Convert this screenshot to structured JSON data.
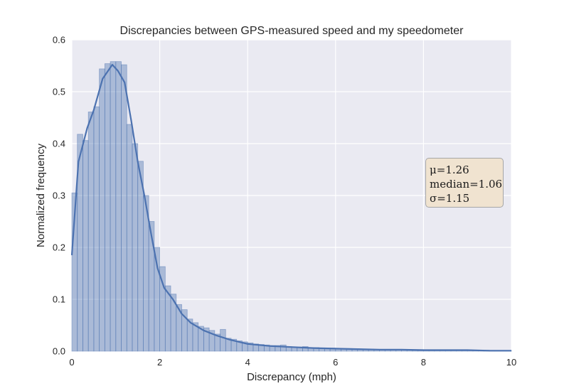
{
  "chart_data": {
    "type": "bar",
    "title": "Discrepancies between GPS-measured speed and my speedometer",
    "xlabel": "Discrepancy (mph)",
    "ylabel": "Normalized frequency",
    "xlim": [
      0,
      10
    ],
    "ylim": [
      0,
      0.6
    ],
    "xticks": [
      "0",
      "2",
      "4",
      "6",
      "8",
      "10"
    ],
    "yticks": [
      "0.0",
      "0.1",
      "0.2",
      "0.3",
      "0.4",
      "0.5",
      "0.6"
    ],
    "grid": true,
    "bin_width": 0.125,
    "histogram": {
      "name": "histogram",
      "bin_starts": [
        0.0,
        0.125,
        0.25,
        0.375,
        0.5,
        0.625,
        0.75,
        0.875,
        1.0,
        1.125,
        1.25,
        1.375,
        1.5,
        1.625,
        1.75,
        1.875,
        2.0,
        2.125,
        2.25,
        2.375,
        2.5,
        2.625,
        2.75,
        2.875,
        3.0,
        3.125,
        3.25,
        3.375,
        3.5,
        3.625,
        3.75,
        3.875,
        4.0,
        4.125,
        4.25,
        4.375,
        4.5,
        4.625,
        4.75,
        4.875,
        5.0,
        5.125,
        5.25,
        5.375,
        5.5,
        5.625,
        5.75,
        5.875,
        6.0,
        6.125,
        6.25,
        6.375,
        6.5,
        6.625,
        6.75,
        6.875,
        7.0,
        7.125,
        7.25,
        7.375,
        7.5,
        7.625,
        7.75,
        7.875,
        8.0,
        8.125,
        8.25,
        8.375,
        8.5,
        8.625,
        8.75,
        8.875,
        9.0,
        9.125,
        9.25,
        9.375,
        9.5,
        9.625,
        9.75,
        9.875
      ],
      "values": [
        0.305,
        0.418,
        0.406,
        0.461,
        0.471,
        0.544,
        0.554,
        0.558,
        0.558,
        0.552,
        0.437,
        0.4,
        0.366,
        0.3,
        0.25,
        0.2,
        0.163,
        0.126,
        0.11,
        0.09,
        0.08,
        0.062,
        0.055,
        0.048,
        0.045,
        0.04,
        0.033,
        0.042,
        0.025,
        0.023,
        0.02,
        0.018,
        0.016,
        0.014,
        0.013,
        0.012,
        0.011,
        0.011,
        0.012,
        0.009,
        0.008,
        0.008,
        0.009,
        0.007,
        0.007,
        0.006,
        0.006,
        0.006,
        0.005,
        0.005,
        0.005,
        0.004,
        0.004,
        0.004,
        0.004,
        0.003,
        0.003,
        0.003,
        0.003,
        0.003,
        0.003,
        0.003,
        0.003,
        0.003,
        0.002,
        0.002,
        0.002,
        0.002,
        0.002,
        0.002,
        0.002,
        0.002,
        0.002,
        0.002,
        0.002,
        0.002,
        0.001,
        0.001,
        0.001,
        0.001
      ]
    },
    "kde": {
      "name": "density",
      "x": [
        0.0,
        0.15,
        0.35,
        0.5,
        0.7,
        0.92,
        1.05,
        1.2,
        1.35,
        1.5,
        1.65,
        1.8,
        1.95,
        2.1,
        2.3,
        2.5,
        2.7,
        3.0,
        3.3,
        3.6,
        4.0,
        4.5,
        5.0,
        5.5,
        6.0,
        6.5,
        7.0,
        7.5,
        8.0,
        8.5,
        9.0,
        9.5,
        10.0
      ],
      "y": [
        0.185,
        0.365,
        0.43,
        0.465,
        0.525,
        0.552,
        0.54,
        0.518,
        0.445,
        0.365,
        0.3,
        0.228,
        0.16,
        0.122,
        0.1,
        0.072,
        0.055,
        0.04,
        0.03,
        0.022,
        0.014,
        0.01,
        0.008,
        0.006,
        0.005,
        0.004,
        0.003,
        0.003,
        0.002,
        0.002,
        0.002,
        0.001,
        0.001
      ]
    },
    "annotations": [
      {
        "label": "stats-box",
        "lines": [
          "μ=1.26",
          "median=1.06",
          "σ=1.15"
        ],
        "placement": "right"
      }
    ],
    "colors": {
      "plot_bg": "#eaeaf2",
      "grid": "#ffffff",
      "bar_fill": "#4c72b0",
      "bar_opacity": 0.4,
      "line": "#4c72b0",
      "box_bg": "#f0e3d0"
    }
  }
}
